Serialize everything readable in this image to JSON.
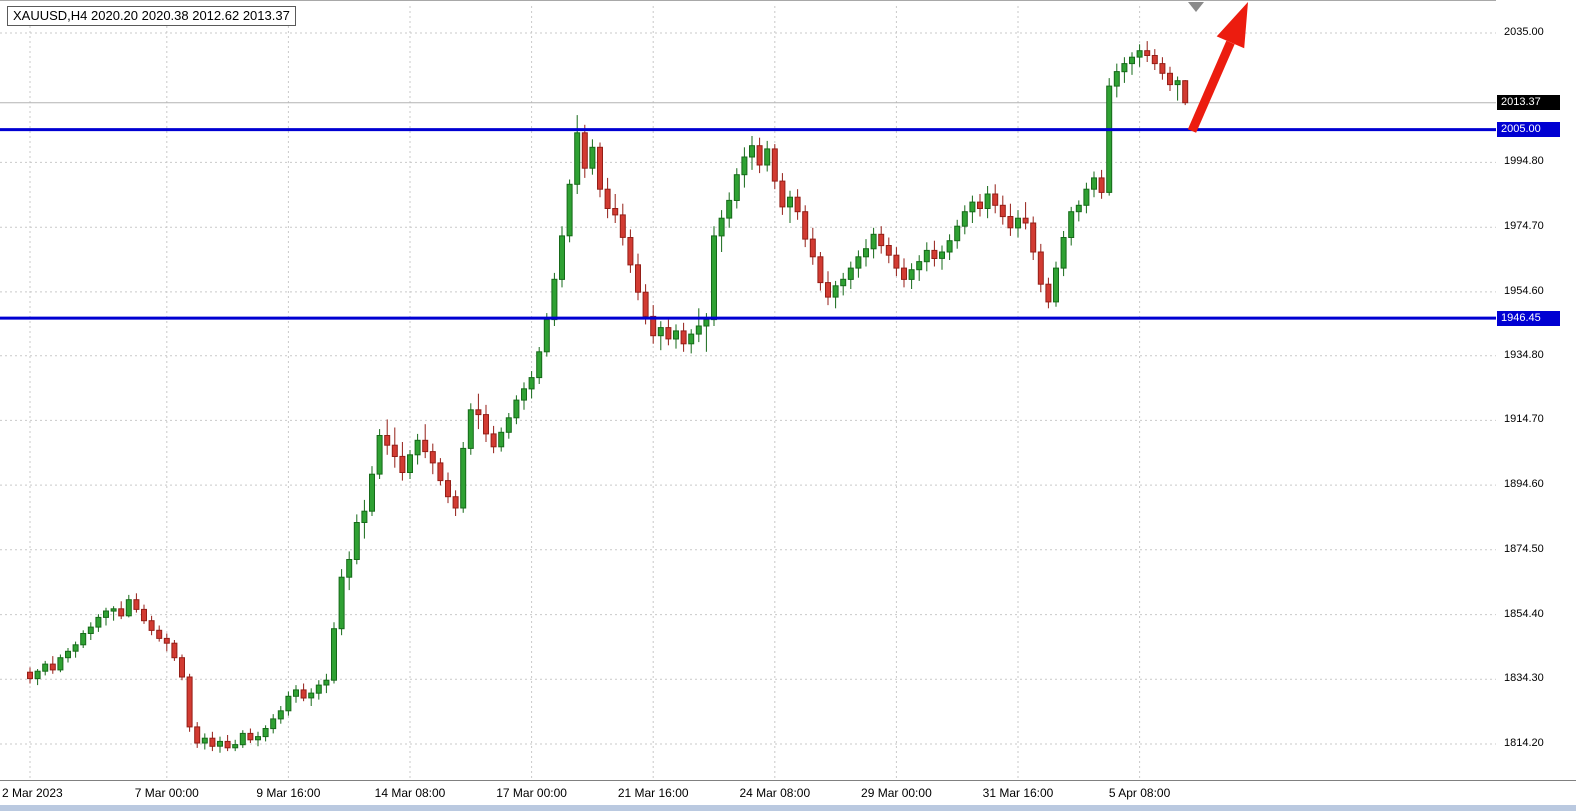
{
  "app": {
    "title_box": "XAUUSD,H4 2020.20 2020.38 2012.62 2013.37"
  },
  "chart_data": {
    "type": "candlestick",
    "symbol": "XAUUSD",
    "timeframe": "H4",
    "title": "XAUUSD,H4 2020.20 2020.38 2012.62 2013.37",
    "current_bar_ohlc": {
      "open": 2020.2,
      "high": 2020.38,
      "low": 2012.62,
      "close": 2013.37
    },
    "ylim": [
      1803.0,
      2045.0
    ],
    "grid": "dashed",
    "colors": {
      "background": "#ffffff",
      "up_fill": "#2fa133",
      "up_stroke": "#166a19",
      "down_fill": "#d23b32",
      "down_stroke": "#941e17",
      "grid": "#c9c9c9",
      "axis_text": "#000000",
      "level_line": "#0000d2",
      "arrow": "#ec1c0f",
      "shift_marker": "#8a8a8a"
    },
    "price_axis_labels": [
      {
        "text": "2035.00",
        "price": 2035.0,
        "kind": "plain"
      },
      {
        "text": "2013.37",
        "price": 2013.37,
        "kind": "current"
      },
      {
        "text": "2005.00",
        "price": 2005.0,
        "kind": "level"
      },
      {
        "text": "1994.80",
        "price": 1994.8,
        "kind": "plain"
      },
      {
        "text": "1974.70",
        "price": 1974.7,
        "kind": "plain"
      },
      {
        "text": "1954.60",
        "price": 1954.6,
        "kind": "plain"
      },
      {
        "text": "1946.45",
        "price": 1946.45,
        "kind": "level"
      },
      {
        "text": "1934.80",
        "price": 1934.8,
        "kind": "plain"
      },
      {
        "text": "1914.70",
        "price": 1914.7,
        "kind": "plain"
      },
      {
        "text": "1894.60",
        "price": 1894.6,
        "kind": "plain"
      },
      {
        "text": "1874.50",
        "price": 1874.5,
        "kind": "plain"
      },
      {
        "text": "1854.40",
        "price": 1854.4,
        "kind": "plain"
      },
      {
        "text": "1834.30",
        "price": 1834.3,
        "kind": "plain"
      },
      {
        "text": "1814.20",
        "price": 1814.2,
        "kind": "plain"
      }
    ],
    "x_ticks": [
      {
        "label": "2 Mar 2023",
        "bar": 0
      },
      {
        "label": "7 Mar 00:00",
        "bar": 18
      },
      {
        "label": "9 Mar 16:00",
        "bar": 34
      },
      {
        "label": "14 Mar 08:00",
        "bar": 50
      },
      {
        "label": "17 Mar 00:00",
        "bar": 66
      },
      {
        "label": "21 Mar 16:00",
        "bar": 82
      },
      {
        "label": "24 Mar 08:00",
        "bar": 98
      },
      {
        "label": "29 Mar 00:00",
        "bar": 114
      },
      {
        "label": "31 Mar 16:00",
        "bar": 130
      },
      {
        "label": "5 Apr 08:00",
        "bar": 146
      }
    ],
    "h_lines": [
      {
        "price": 2005.0,
        "label": "2005.00",
        "color": "#0000d2"
      },
      {
        "price": 1946.45,
        "label": "1946.45",
        "color": "#0000d2"
      }
    ],
    "current_price": {
      "value": 2013.37,
      "label": "2013.37",
      "badge_bg": "#000000",
      "line_color": "#b4b4b4"
    },
    "candles": [
      [
        1836.5,
        1838,
        1833,
        1834.5
      ],
      [
        1834.5,
        1837.5,
        1832.5,
        1836.8
      ],
      [
        1836.8,
        1840,
        1835.5,
        1839
      ],
      [
        1839,
        1841.5,
        1836,
        1837.2
      ],
      [
        1837.2,
        1842,
        1836.5,
        1841
      ],
      [
        1841,
        1844,
        1839.5,
        1843
      ],
      [
        1843,
        1846,
        1841,
        1845
      ],
      [
        1845,
        1849.5,
        1844,
        1848.5
      ],
      [
        1848.5,
        1852,
        1846.5,
        1850.5
      ],
      [
        1850.5,
        1854.5,
        1849,
        1853.5
      ],
      [
        1853.5,
        1856.5,
        1851,
        1855.5
      ],
      [
        1855.5,
        1857,
        1852.5,
        1856.2
      ],
      [
        1856.2,
        1858.5,
        1853,
        1854
      ],
      [
        1854,
        1860.5,
        1853.5,
        1859
      ],
      [
        1859,
        1861,
        1855,
        1856
      ],
      [
        1856,
        1857.5,
        1851.5,
        1852.5
      ],
      [
        1852.5,
        1854,
        1848,
        1849.5
      ],
      [
        1849.5,
        1851,
        1846,
        1847
      ],
      [
        1847,
        1848.5,
        1843,
        1845.5
      ],
      [
        1845.5,
        1846.5,
        1840,
        1841
      ],
      [
        1841,
        1842,
        1834,
        1835
      ],
      [
        1835,
        1836,
        1818,
        1819.5
      ],
      [
        1819.5,
        1821,
        1813,
        1814.5
      ],
      [
        1814.5,
        1817.5,
        1812.5,
        1816
      ],
      [
        1816,
        1818,
        1812,
        1813.5
      ],
      [
        1813.5,
        1816.5,
        1811.5,
        1815
      ],
      [
        1815,
        1817,
        1812,
        1813
      ],
      [
        1813,
        1815.5,
        1812,
        1814
      ],
      [
        1814,
        1818.5,
        1813,
        1817.5
      ],
      [
        1817.5,
        1819,
        1814.5,
        1815.5
      ],
      [
        1815.5,
        1818,
        1813.5,
        1816.5
      ],
      [
        1816.5,
        1820,
        1815,
        1819
      ],
      [
        1819,
        1823.5,
        1817.5,
        1822
      ],
      [
        1822,
        1826,
        1820.5,
        1824.5
      ],
      [
        1824.5,
        1830.5,
        1823,
        1829
      ],
      [
        1829,
        1832.5,
        1827,
        1831
      ],
      [
        1831,
        1833,
        1827.5,
        1828.5
      ],
      [
        1828.5,
        1831.5,
        1826,
        1830
      ],
      [
        1830,
        1834,
        1828,
        1832.5
      ],
      [
        1832.5,
        1836,
        1830,
        1834
      ],
      [
        1834,
        1852,
        1833,
        1850
      ],
      [
        1850,
        1868.5,
        1848,
        1866
      ],
      [
        1866,
        1874,
        1862,
        1871.5
      ],
      [
        1871.5,
        1885.5,
        1870,
        1883
      ],
      [
        1883,
        1890,
        1878,
        1886.5
      ],
      [
        1886.5,
        1900.5,
        1885,
        1898
      ],
      [
        1898,
        1912,
        1896.5,
        1910
      ],
      [
        1910,
        1915,
        1904,
        1907
      ],
      [
        1907,
        1912.5,
        1900,
        1903.5
      ],
      [
        1903.5,
        1908,
        1896,
        1898.5
      ],
      [
        1898.5,
        1905.5,
        1896.5,
        1904
      ],
      [
        1904,
        1910.5,
        1901,
        1908.5
      ],
      [
        1908.5,
        1913.5,
        1903,
        1905
      ],
      [
        1905,
        1907.5,
        1898,
        1901.5
      ],
      [
        1901.5,
        1903,
        1894.5,
        1896
      ],
      [
        1896,
        1898.5,
        1889,
        1891
      ],
      [
        1891,
        1893,
        1885,
        1887.5
      ],
      [
        1887.5,
        1908,
        1886,
        1906
      ],
      [
        1906,
        1920,
        1904,
        1918
      ],
      [
        1918,
        1923,
        1912,
        1916.5
      ],
      [
        1916.5,
        1919.5,
        1908,
        1910.5
      ],
      [
        1910.5,
        1913,
        1904.5,
        1906.5
      ],
      [
        1906.5,
        1912.5,
        1905,
        1911
      ],
      [
        1911,
        1917,
        1909,
        1915.5
      ],
      [
        1915.5,
        1922.5,
        1913.5,
        1921
      ],
      [
        1921,
        1926.5,
        1918,
        1924.5
      ],
      [
        1924.5,
        1930,
        1921.5,
        1928
      ],
      [
        1928,
        1937.5,
        1926,
        1936
      ],
      [
        1936,
        1948,
        1934.5,
        1946
      ],
      [
        1946,
        1960.5,
        1944,
        1958.5
      ],
      [
        1958.5,
        1975,
        1956,
        1972
      ],
      [
        1972,
        1989.5,
        1970,
        1988
      ],
      [
        1988,
        2009.5,
        1985,
        2004
      ],
      [
        2004,
        2006.5,
        1990,
        1993
      ],
      [
        1993,
        2002,
        1991,
        1999.5
      ],
      [
        1999.5,
        2001,
        1984,
        1986.5
      ],
      [
        1986.5,
        1990,
        1977.5,
        1980.5
      ],
      [
        1980.5,
        1985,
        1976,
        1978.5
      ],
      [
        1978.5,
        1982,
        1969,
        1971.5
      ],
      [
        1971.5,
        1974,
        1960.5,
        1963
      ],
      [
        1963,
        1966.5,
        1952,
        1954.5
      ],
      [
        1954.5,
        1957,
        1944.5,
        1947
      ],
      [
        1947,
        1950.5,
        1938.5,
        1941
      ],
      [
        1941,
        1945.5,
        1936.5,
        1943.5
      ],
      [
        1943.5,
        1946,
        1938,
        1940
      ],
      [
        1940,
        1944.5,
        1937,
        1942.5
      ],
      [
        1942.5,
        1945,
        1936,
        1938.5
      ],
      [
        1938.5,
        1943,
        1935.5,
        1941.5
      ],
      [
        1941.5,
        1949.5,
        1939,
        1944
      ],
      [
        1944,
        1948,
        1936,
        1946
      ],
      [
        1946,
        1975,
        1944,
        1972
      ],
      [
        1972,
        1980,
        1967,
        1977.5
      ],
      [
        1977.5,
        1985.5,
        1974.5,
        1983
      ],
      [
        1983,
        1993,
        1980.5,
        1991
      ],
      [
        1991,
        1999.5,
        1987,
        1996.5
      ],
      [
        1996.5,
        2003,
        1992.5,
        2000
      ],
      [
        2000,
        2002.5,
        1991.5,
        1994
      ],
      [
        1994,
        2001.5,
        1992,
        1999
      ],
      [
        1999,
        2000.5,
        1986.5,
        1989
      ],
      [
        1989,
        1991.5,
        1978.5,
        1981
      ],
      [
        1981,
        1986,
        1976,
        1984
      ],
      [
        1984,
        1986.5,
        1977,
        1979.5
      ],
      [
        1979.5,
        1981.5,
        1968.5,
        1971
      ],
      [
        1971,
        1974.5,
        1963,
        1965.5
      ],
      [
        1965.5,
        1967,
        1955,
        1957.5
      ],
      [
        1957.5,
        1961,
        1950.5,
        1953
      ],
      [
        1953,
        1958,
        1949.5,
        1956.5
      ],
      [
        1956.5,
        1960.5,
        1953.5,
        1958.5
      ],
      [
        1958.5,
        1964,
        1955.5,
        1962
      ],
      [
        1962,
        1967.5,
        1959,
        1965.5
      ],
      [
        1965.5,
        1971,
        1962.5,
        1968
      ],
      [
        1968,
        1974.5,
        1965,
        1972.5
      ],
      [
        1972.5,
        1975,
        1966.5,
        1969
      ],
      [
        1969,
        1971.5,
        1963.5,
        1966
      ],
      [
        1966,
        1968.5,
        1959.5,
        1962
      ],
      [
        1962,
        1965,
        1956,
        1958.5
      ],
      [
        1958.5,
        1963.5,
        1955.5,
        1961.5
      ],
      [
        1961.5,
        1966,
        1958,
        1964
      ],
      [
        1964,
        1970,
        1961,
        1967.5
      ],
      [
        1967.5,
        1970.5,
        1962.5,
        1965
      ],
      [
        1965,
        1969,
        1961.5,
        1967
      ],
      [
        1967,
        1972.5,
        1964.5,
        1970.5
      ],
      [
        1970.5,
        1977,
        1968,
        1975
      ],
      [
        1975,
        1981.5,
        1972.5,
        1979.5
      ],
      [
        1979.5,
        1984.5,
        1976,
        1982.5
      ],
      [
        1982.5,
        1985,
        1978,
        1980.5
      ],
      [
        1980.5,
        1987.5,
        1977.5,
        1985
      ],
      [
        1985,
        1988,
        1979,
        1981.5
      ],
      [
        1981.5,
        1984.5,
        1975.5,
        1978
      ],
      [
        1978,
        1982,
        1972,
        1974.5
      ],
      [
        1974.5,
        1980,
        1971.5,
        1977.5
      ],
      [
        1977.5,
        1982.5,
        1974,
        1976
      ],
      [
        1976,
        1978,
        1964.5,
        1967
      ],
      [
        1967,
        1969.5,
        1954.5,
        1957
      ],
      [
        1957,
        1959,
        1949.5,
        1951.5
      ],
      [
        1951.5,
        1964,
        1950,
        1962
      ],
      [
        1962,
        1973.5,
        1959.5,
        1971.5
      ],
      [
        1971.5,
        1981,
        1969,
        1979.5
      ],
      [
        1979.5,
        1983,
        1976.5,
        1981.5
      ],
      [
        1981.5,
        1988.5,
        1979,
        1986.5
      ],
      [
        1986.5,
        1992,
        1984,
        1990
      ],
      [
        1990,
        1992.5,
        1983.5,
        1985.5
      ],
      [
        1985.5,
        2021,
        1984.5,
        2018.5
      ],
      [
        2018.5,
        2025.5,
        2015,
        2023
      ],
      [
        2023,
        2027.5,
        2019.5,
        2025.5
      ],
      [
        2025.5,
        2029,
        2022,
        2027.5
      ],
      [
        2027.5,
        2031.5,
        2024.5,
        2029.5
      ],
      [
        2029.5,
        2032.5,
        2026,
        2028
      ],
      [
        2028,
        2030,
        2023.5,
        2025.5
      ],
      [
        2025.5,
        2027.5,
        2020.5,
        2022.5
      ],
      [
        2022.5,
        2024.5,
        2017,
        2019
      ],
      [
        2019,
        2021.5,
        2014,
        2020.2
      ],
      [
        2020.2,
        2020.38,
        2012.62,
        2013.37
      ]
    ],
    "annotations": {
      "trend_arrow": {
        "color": "#ec1c0f",
        "tail_x": 1192,
        "tail_y": 131,
        "tip_x": 1248,
        "tip_y": 2
      },
      "shift_marker": {
        "color": "#8a8a8a",
        "x": 1196,
        "y": 2
      }
    }
  }
}
